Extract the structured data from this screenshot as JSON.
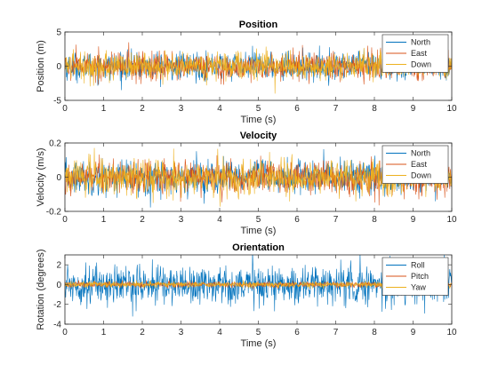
{
  "chart_data": [
    {
      "type": "line",
      "title": "Position",
      "xlabel": "Time (s)",
      "ylabel": "Position (m)",
      "xlim": [
        0,
        10
      ],
      "ylim": [
        -5,
        5
      ],
      "xticks": [
        0,
        1,
        2,
        3,
        4,
        5,
        6,
        7,
        8,
        9,
        10
      ],
      "yticks": [
        -5,
        0,
        5
      ],
      "legend": "top-right",
      "x": {
        "start": 0,
        "end": 10,
        "step": 0.01
      },
      "series": [
        {
          "name": "North",
          "color": "#0072BD",
          "distribution": "noise",
          "mean": 0,
          "std": 1.0
        },
        {
          "name": "East",
          "color": "#D95319",
          "distribution": "noise",
          "mean": 0,
          "std": 1.0
        },
        {
          "name": "Down",
          "color": "#EDB120",
          "distribution": "noise",
          "mean": 0,
          "std": 1.0
        }
      ]
    },
    {
      "type": "line",
      "title": "Velocity",
      "xlabel": "Time (s)",
      "ylabel": "Velocity (m/s)",
      "xlim": [
        0,
        10
      ],
      "ylim": [
        -0.2,
        0.2
      ],
      "xticks": [
        0,
        1,
        2,
        3,
        4,
        5,
        6,
        7,
        8,
        9,
        10
      ],
      "yticks": [
        -0.2,
        0,
        0.2
      ],
      "legend": "top-right",
      "x": {
        "start": 0,
        "end": 10,
        "step": 0.01
      },
      "series": [
        {
          "name": "North",
          "color": "#0072BD",
          "distribution": "noise",
          "mean": 0,
          "std": 0.05
        },
        {
          "name": "East",
          "color": "#D95319",
          "distribution": "noise",
          "mean": 0,
          "std": 0.05
        },
        {
          "name": "Down",
          "color": "#EDB120",
          "distribution": "noise",
          "mean": 0,
          "std": 0.05
        }
      ]
    },
    {
      "type": "line",
      "title": "Orientation",
      "xlabel": "Time (s)",
      "ylabel": "Rotation (degrees)",
      "xlim": [
        0,
        10
      ],
      "ylim": [
        -4,
        3
      ],
      "xticks": [
        0,
        1,
        2,
        3,
        4,
        5,
        6,
        7,
        8,
        9,
        10
      ],
      "yticks": [
        -4,
        -2,
        0,
        2
      ],
      "legend": "top-right",
      "x": {
        "start": 0,
        "end": 10,
        "step": 0.01
      },
      "series": [
        {
          "name": "Roll",
          "color": "#0072BD",
          "distribution": "noise",
          "mean": 0,
          "std": 1.0
        },
        {
          "name": "Pitch",
          "color": "#D95319",
          "distribution": "noise",
          "mean": 0,
          "std": 0.15
        },
        {
          "name": "Yaw",
          "color": "#EDB120",
          "distribution": "noise",
          "mean": 0,
          "std": 0.15
        }
      ]
    }
  ]
}
